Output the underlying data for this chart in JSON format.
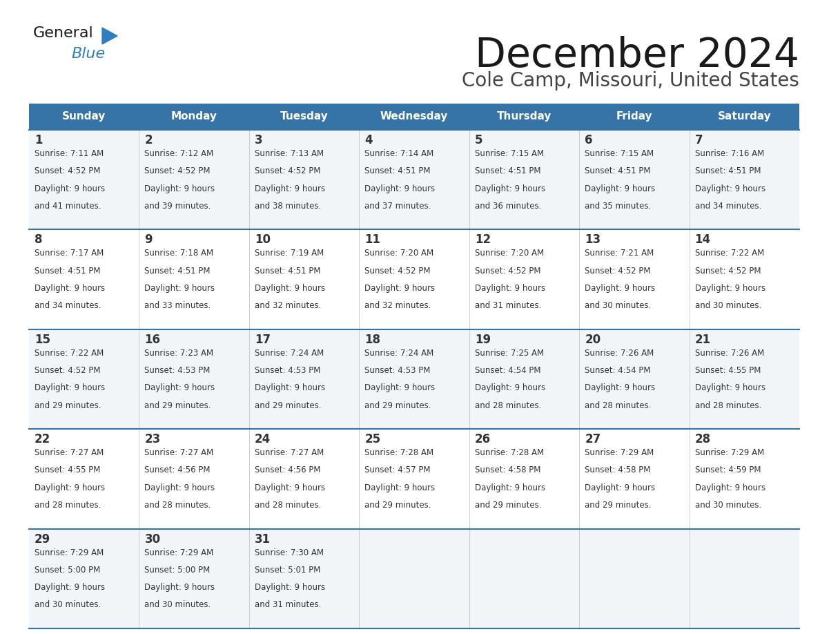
{
  "title": "December 2024",
  "subtitle": "Cole Camp, Missouri, United States",
  "header_color": "#3674A8",
  "header_text_color": "#FFFFFF",
  "days_of_week": [
    "Sunday",
    "Monday",
    "Tuesday",
    "Wednesday",
    "Thursday",
    "Friday",
    "Saturday"
  ],
  "cell_bg_even": "#F2F5F8",
  "cell_bg_odd": "#FFFFFF",
  "grid_line_color": "#3674A8",
  "text_color": "#333333",
  "logo_color": "#2E7EC2",
  "title_fontsize": 42,
  "subtitle_fontsize": 20,
  "header_fontsize": 11,
  "day_num_fontsize": 12,
  "cell_text_fontsize": 8.5,
  "calendar_data": [
    [
      {
        "day": 1,
        "sunrise": "7:11 AM",
        "sunset": "4:52 PM",
        "daylight": "9 hours and 41 minutes."
      },
      {
        "day": 2,
        "sunrise": "7:12 AM",
        "sunset": "4:52 PM",
        "daylight": "9 hours and 39 minutes."
      },
      {
        "day": 3,
        "sunrise": "7:13 AM",
        "sunset": "4:52 PM",
        "daylight": "9 hours and 38 minutes."
      },
      {
        "day": 4,
        "sunrise": "7:14 AM",
        "sunset": "4:51 PM",
        "daylight": "9 hours and 37 minutes."
      },
      {
        "day": 5,
        "sunrise": "7:15 AM",
        "sunset": "4:51 PM",
        "daylight": "9 hours and 36 minutes."
      },
      {
        "day": 6,
        "sunrise": "7:15 AM",
        "sunset": "4:51 PM",
        "daylight": "9 hours and 35 minutes."
      },
      {
        "day": 7,
        "sunrise": "7:16 AM",
        "sunset": "4:51 PM",
        "daylight": "9 hours and 34 minutes."
      }
    ],
    [
      {
        "day": 8,
        "sunrise": "7:17 AM",
        "sunset": "4:51 PM",
        "daylight": "9 hours and 34 minutes."
      },
      {
        "day": 9,
        "sunrise": "7:18 AM",
        "sunset": "4:51 PM",
        "daylight": "9 hours and 33 minutes."
      },
      {
        "day": 10,
        "sunrise": "7:19 AM",
        "sunset": "4:51 PM",
        "daylight": "9 hours and 32 minutes."
      },
      {
        "day": 11,
        "sunrise": "7:20 AM",
        "sunset": "4:52 PM",
        "daylight": "9 hours and 32 minutes."
      },
      {
        "day": 12,
        "sunrise": "7:20 AM",
        "sunset": "4:52 PM",
        "daylight": "9 hours and 31 minutes."
      },
      {
        "day": 13,
        "sunrise": "7:21 AM",
        "sunset": "4:52 PM",
        "daylight": "9 hours and 30 minutes."
      },
      {
        "day": 14,
        "sunrise": "7:22 AM",
        "sunset": "4:52 PM",
        "daylight": "9 hours and 30 minutes."
      }
    ],
    [
      {
        "day": 15,
        "sunrise": "7:22 AM",
        "sunset": "4:52 PM",
        "daylight": "9 hours and 29 minutes."
      },
      {
        "day": 16,
        "sunrise": "7:23 AM",
        "sunset": "4:53 PM",
        "daylight": "9 hours and 29 minutes."
      },
      {
        "day": 17,
        "sunrise": "7:24 AM",
        "sunset": "4:53 PM",
        "daylight": "9 hours and 29 minutes."
      },
      {
        "day": 18,
        "sunrise": "7:24 AM",
        "sunset": "4:53 PM",
        "daylight": "9 hours and 29 minutes."
      },
      {
        "day": 19,
        "sunrise": "7:25 AM",
        "sunset": "4:54 PM",
        "daylight": "9 hours and 28 minutes."
      },
      {
        "day": 20,
        "sunrise": "7:26 AM",
        "sunset": "4:54 PM",
        "daylight": "9 hours and 28 minutes."
      },
      {
        "day": 21,
        "sunrise": "7:26 AM",
        "sunset": "4:55 PM",
        "daylight": "9 hours and 28 minutes."
      }
    ],
    [
      {
        "day": 22,
        "sunrise": "7:27 AM",
        "sunset": "4:55 PM",
        "daylight": "9 hours and 28 minutes."
      },
      {
        "day": 23,
        "sunrise": "7:27 AM",
        "sunset": "4:56 PM",
        "daylight": "9 hours and 28 minutes."
      },
      {
        "day": 24,
        "sunrise": "7:27 AM",
        "sunset": "4:56 PM",
        "daylight": "9 hours and 28 minutes."
      },
      {
        "day": 25,
        "sunrise": "7:28 AM",
        "sunset": "4:57 PM",
        "daylight": "9 hours and 29 minutes."
      },
      {
        "day": 26,
        "sunrise": "7:28 AM",
        "sunset": "4:58 PM",
        "daylight": "9 hours and 29 minutes."
      },
      {
        "day": 27,
        "sunrise": "7:29 AM",
        "sunset": "4:58 PM",
        "daylight": "9 hours and 29 minutes."
      },
      {
        "day": 28,
        "sunrise": "7:29 AM",
        "sunset": "4:59 PM",
        "daylight": "9 hours and 30 minutes."
      }
    ],
    [
      {
        "day": 29,
        "sunrise": "7:29 AM",
        "sunset": "5:00 PM",
        "daylight": "9 hours and 30 minutes."
      },
      {
        "day": 30,
        "sunrise": "7:29 AM",
        "sunset": "5:00 PM",
        "daylight": "9 hours and 30 minutes."
      },
      {
        "day": 31,
        "sunrise": "7:30 AM",
        "sunset": "5:01 PM",
        "daylight": "9 hours and 31 minutes."
      },
      null,
      null,
      null,
      null
    ]
  ]
}
